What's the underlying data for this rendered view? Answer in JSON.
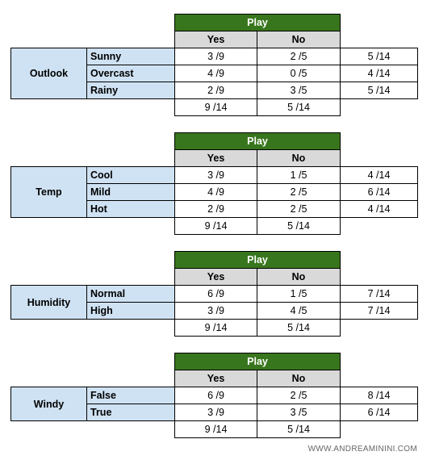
{
  "play_label": "Play",
  "yes_label": "Yes",
  "no_label": "No",
  "watermark": "WWW.ANDREAMININI.COM",
  "tables": [
    {
      "attribute": "Outlook",
      "rows": [
        {
          "value": "Sunny",
          "yes": "3 /9",
          "no": "2 /5",
          "total": "5 /14"
        },
        {
          "value": "Overcast",
          "yes": "4 /9",
          "no": "0 /5",
          "total": "4 /14"
        },
        {
          "value": "Rainy",
          "yes": "2 /9",
          "no": "3 /5",
          "total": "5 /14"
        }
      ],
      "totals": {
        "yes": "9 /14",
        "no": "5 /14"
      }
    },
    {
      "attribute": "Temp",
      "rows": [
        {
          "value": "Cool",
          "yes": "3 /9",
          "no": "1 /5",
          "total": "4 /14"
        },
        {
          "value": "Mild",
          "yes": "4 /9",
          "no": "2 /5",
          "total": "6 /14"
        },
        {
          "value": "Hot",
          "yes": "2 /9",
          "no": "2 /5",
          "total": "4 /14"
        }
      ],
      "totals": {
        "yes": "9 /14",
        "no": "5 /14"
      }
    },
    {
      "attribute": "Humidity",
      "rows": [
        {
          "value": "Normal",
          "yes": "6 /9",
          "no": "1 /5",
          "total": "7 /14"
        },
        {
          "value": "High",
          "yes": "3 /9",
          "no": "4 /5",
          "total": "7 /14"
        }
      ],
      "totals": {
        "yes": "9 /14",
        "no": "5 /14"
      }
    },
    {
      "attribute": "Windy",
      "rows": [
        {
          "value": "False",
          "yes": "6 /9",
          "no": "2 /5",
          "total": "8 /14"
        },
        {
          "value": "True",
          "yes": "3 /9",
          "no": "3 /5",
          "total": "6 /14"
        }
      ],
      "totals": {
        "yes": "9 /14",
        "no": "5 /14"
      }
    }
  ]
}
